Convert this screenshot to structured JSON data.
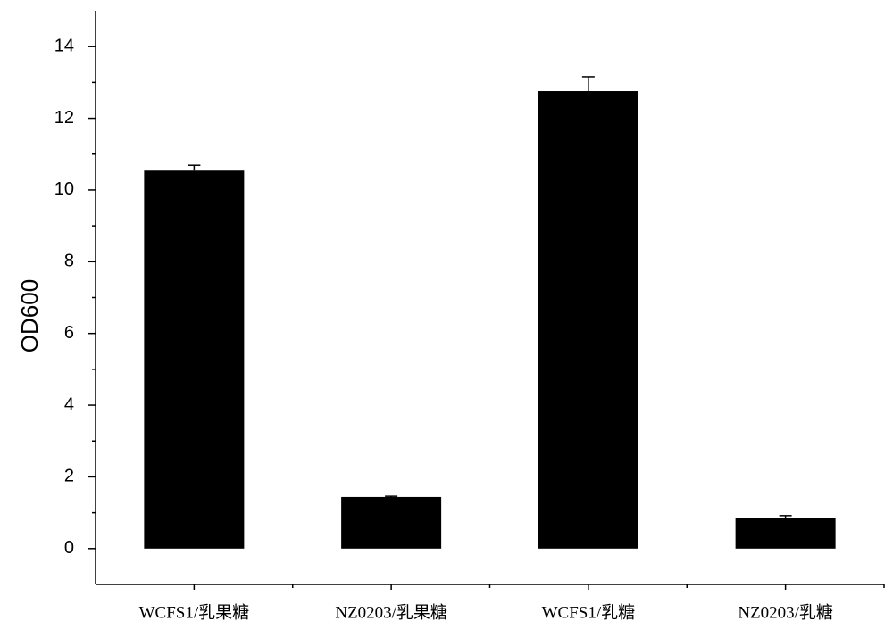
{
  "chart_data": {
    "type": "bar",
    "y_label": "OD600",
    "categories": [
      "WCFS1/乳果糖",
      "NZ0203/乳果糖",
      "WCFS1/乳糖",
      "NZ0203/乳糖"
    ],
    "values": [
      10.54,
      1.44,
      12.76,
      0.85
    ],
    "errors": [
      0.15,
      0.02,
      0.4,
      0.07
    ],
    "color": "#000000",
    "ylim": [
      -1,
      15
    ],
    "yticks": [
      0,
      2,
      4,
      6,
      8,
      10,
      12,
      14
    ],
    "grid": false
  }
}
